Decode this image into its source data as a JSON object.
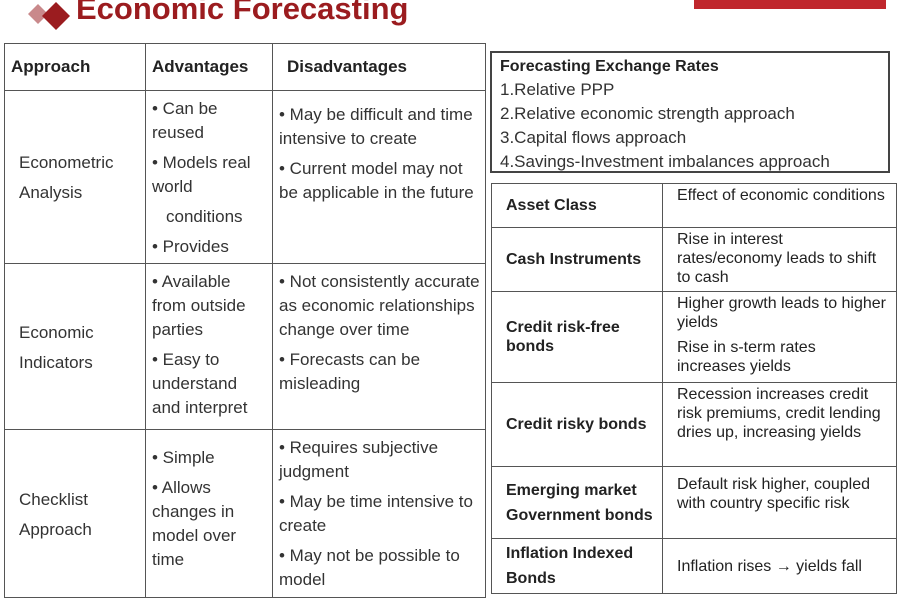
{
  "title": "Economic Forecasting",
  "colors": {
    "accent": "#9b1c1f",
    "bar": "#c0272d"
  },
  "approach_table": {
    "headers": [
      "Approach",
      "Advantages",
      "Disadvantages"
    ],
    "rows": [
      {
        "approach": [
          "Econometric",
          "Analysis"
        ],
        "advantages": [
          "• Can be reused",
          "• Models real world",
          "conditions",
          "•  Provides"
        ],
        "disadvantages": [
          "• May be difficult and time     intensive to create",
          "• Current model may not be applicable in the future"
        ]
      },
      {
        "approach": [
          "Economic",
          "Indicators"
        ],
        "advantages": [
          "•  Available from outside parties",
          "•  Easy to understand and interpret"
        ],
        "disadvantages": [
          "• Not consistently accurate as economic relationships change over time",
          "• Forecasts can be misleading"
        ]
      },
      {
        "approach": [
          "Checklist",
          "Approach"
        ],
        "advantages": [
          "• Simple",
          "• Allows changes in model over time"
        ],
        "disadvantages": [
          "• Requires subjective judgment",
          "• May be time intensive to create",
          "• May not be possible to model"
        ]
      }
    ]
  },
  "fx_box": {
    "title": "Forecasting Exchange Rates",
    "items": [
      "1.Relative PPP",
      "2.Relative economic strength approach",
      "3.Capital flows approach",
      "4.Savings-Investment imbalances approach"
    ]
  },
  "asset_table": {
    "headers": [
      "Asset Class",
      "Effect of economic conditions"
    ],
    "rows": [
      {
        "cls": "Cash Instruments",
        "effect": [
          "Rise in interest rates/economy leads to shift to cash"
        ]
      },
      {
        "cls": "Credit risk-free bonds",
        "effect": [
          "Higher growth leads to higher yields",
          "Rise in s-term rates increases yields"
        ]
      },
      {
        "cls": "Credit risky bonds",
        "effect": [
          "Recession increases credit risk premiums, credit lending dries up, increasing yields"
        ]
      },
      {
        "cls": "Emerging market Government bonds",
        "effect": [
          "Default risk higher, coupled with country specific risk"
        ]
      },
      {
        "cls": "Inflation Indexed Bonds",
        "effect": [
          "Inflation rises → yields fall"
        ]
      }
    ]
  }
}
